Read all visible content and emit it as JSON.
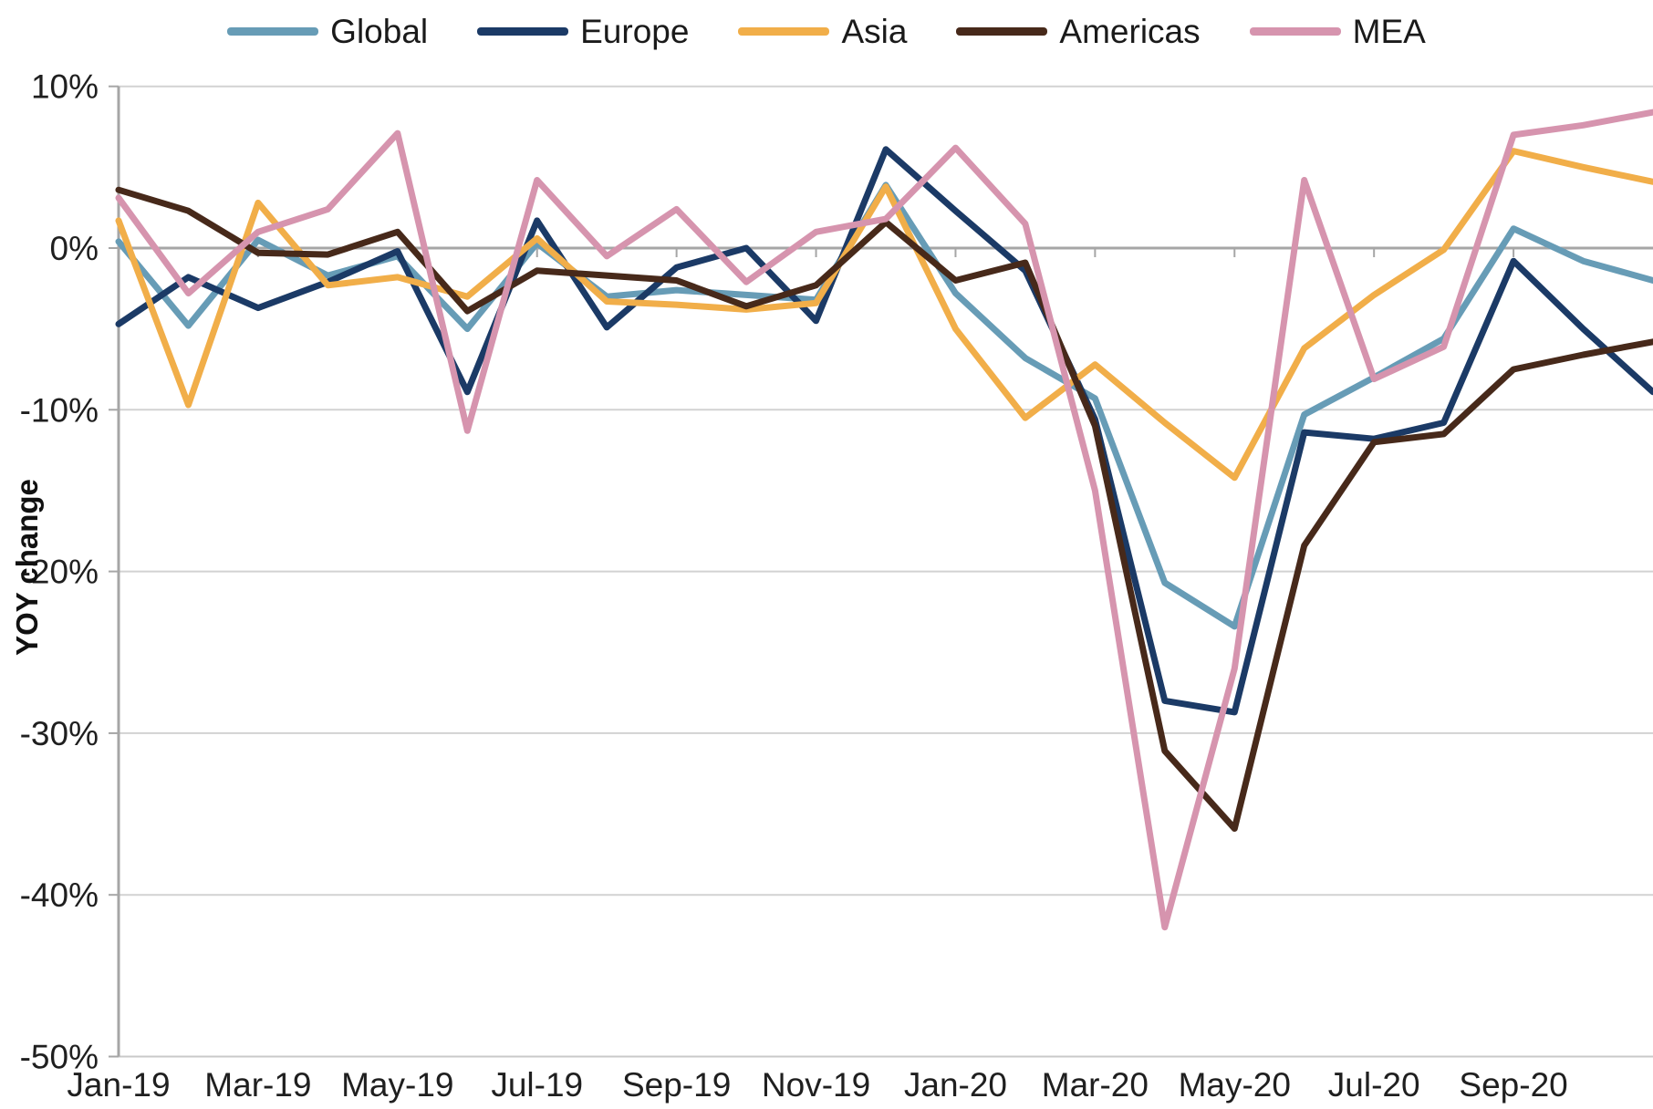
{
  "page": {
    "background": "#FFFFFF"
  },
  "legend": {
    "items": [
      {
        "label": "Global",
        "color": "#679CB6"
      },
      {
        "label": "Europe",
        "color": "#1B3A66"
      },
      {
        "label": "Asia",
        "color": "#F1AE49"
      },
      {
        "label": "Americas",
        "color": "#47291A"
      },
      {
        "label": "MEA",
        "color": "#D694AE"
      }
    ]
  },
  "y_axis": {
    "title": "YOY change",
    "tick_labels": [
      "10%",
      "0%",
      "-10%",
      "-20%",
      "-30%",
      "-40%",
      "-50%"
    ],
    "tick_values": [
      10,
      0,
      -10,
      -20,
      -30,
      -40,
      -50
    ]
  },
  "x_axis": {
    "tick_labels": [
      "Jan-19",
      "Mar-19",
      "May-19",
      "Jul-19",
      "Sep-19",
      "Nov-19",
      "Jan-20",
      "Mar-20",
      "May-20",
      "Jul-20",
      "Sep-20"
    ]
  },
  "styles": {
    "grid_color": "#D2D2D2",
    "zero_line_color": "#A6A6A6",
    "axis_color": "#A6A6A6",
    "bottom_line_color": "#C9C9C9",
    "text_color": "#1F1F1F",
    "line_width": 7
  },
  "chart_data": {
    "type": "line",
    "title": "",
    "xlabel": "",
    "ylabel": "YOY change",
    "ylim": [
      -50,
      10
    ],
    "grid": true,
    "legend_position": "top",
    "x": [
      "Jan-19",
      "Feb-19",
      "Mar-19",
      "Apr-19",
      "May-19",
      "Jun-19",
      "Jul-19",
      "Aug-19",
      "Sep-19",
      "Oct-19",
      "Nov-19",
      "Dec-19",
      "Jan-20",
      "Feb-20",
      "Mar-20",
      "Apr-20",
      "May-20",
      "Jun-20",
      "Jul-20",
      "Aug-20",
      "Sep-20",
      "Oct-20",
      "Nov-20"
    ],
    "series": [
      {
        "name": "Global",
        "color": "#679CB6",
        "values": [
          0.4,
          -4.8,
          0.5,
          -1.7,
          -0.5,
          -5.0,
          0.3,
          -3.0,
          -2.6,
          -2.9,
          -3.2,
          3.9,
          -2.8,
          -6.8,
          -9.3,
          -20.7,
          -23.4,
          -10.3,
          -8.0,
          -5.6,
          1.2,
          -0.8,
          -2.0
        ]
      },
      {
        "name": "Europe",
        "color": "#1B3A66",
        "values": [
          -4.7,
          -1.8,
          -3.7,
          -2.1,
          -0.2,
          -8.9,
          1.7,
          -4.9,
          -1.2,
          0.0,
          -4.5,
          6.1,
          2.3,
          -1.4,
          -10.6,
          -28.0,
          -28.7,
          -11.4,
          -11.8,
          -10.8,
          -0.8,
          -5.0,
          -8.9
        ]
      },
      {
        "name": "Asia",
        "color": "#F1AE49",
        "values": [
          1.7,
          -9.7,
          2.8,
          -2.3,
          -1.8,
          -3.0,
          0.6,
          -3.3,
          -3.5,
          -3.8,
          -3.4,
          3.8,
          -5.0,
          -10.5,
          -7.2,
          -10.8,
          -14.2,
          -6.2,
          -2.9,
          -0.1,
          6.0,
          5.0,
          4.1
        ]
      },
      {
        "name": "Americas",
        "color": "#47291A",
        "values": [
          3.6,
          2.3,
          -0.3,
          -0.4,
          1.0,
          -3.9,
          -1.4,
          -1.7,
          -2.0,
          -3.6,
          -2.3,
          1.6,
          -2.0,
          -0.9,
          -11.0,
          -31.1,
          -35.9,
          -18.4,
          -12.0,
          -11.5,
          -7.5,
          -6.6,
          -5.8
        ]
      },
      {
        "name": "MEA",
        "color": "#D694AE",
        "values": [
          3.1,
          -2.8,
          1.0,
          2.4,
          7.1,
          -11.3,
          4.2,
          -0.5,
          2.4,
          -2.1,
          1.0,
          1.8,
          6.2,
          1.5,
          -15.0,
          -42.0,
          -26.0,
          4.2,
          -8.1,
          -6.1,
          7.0,
          7.6,
          8.4
        ]
      }
    ]
  }
}
